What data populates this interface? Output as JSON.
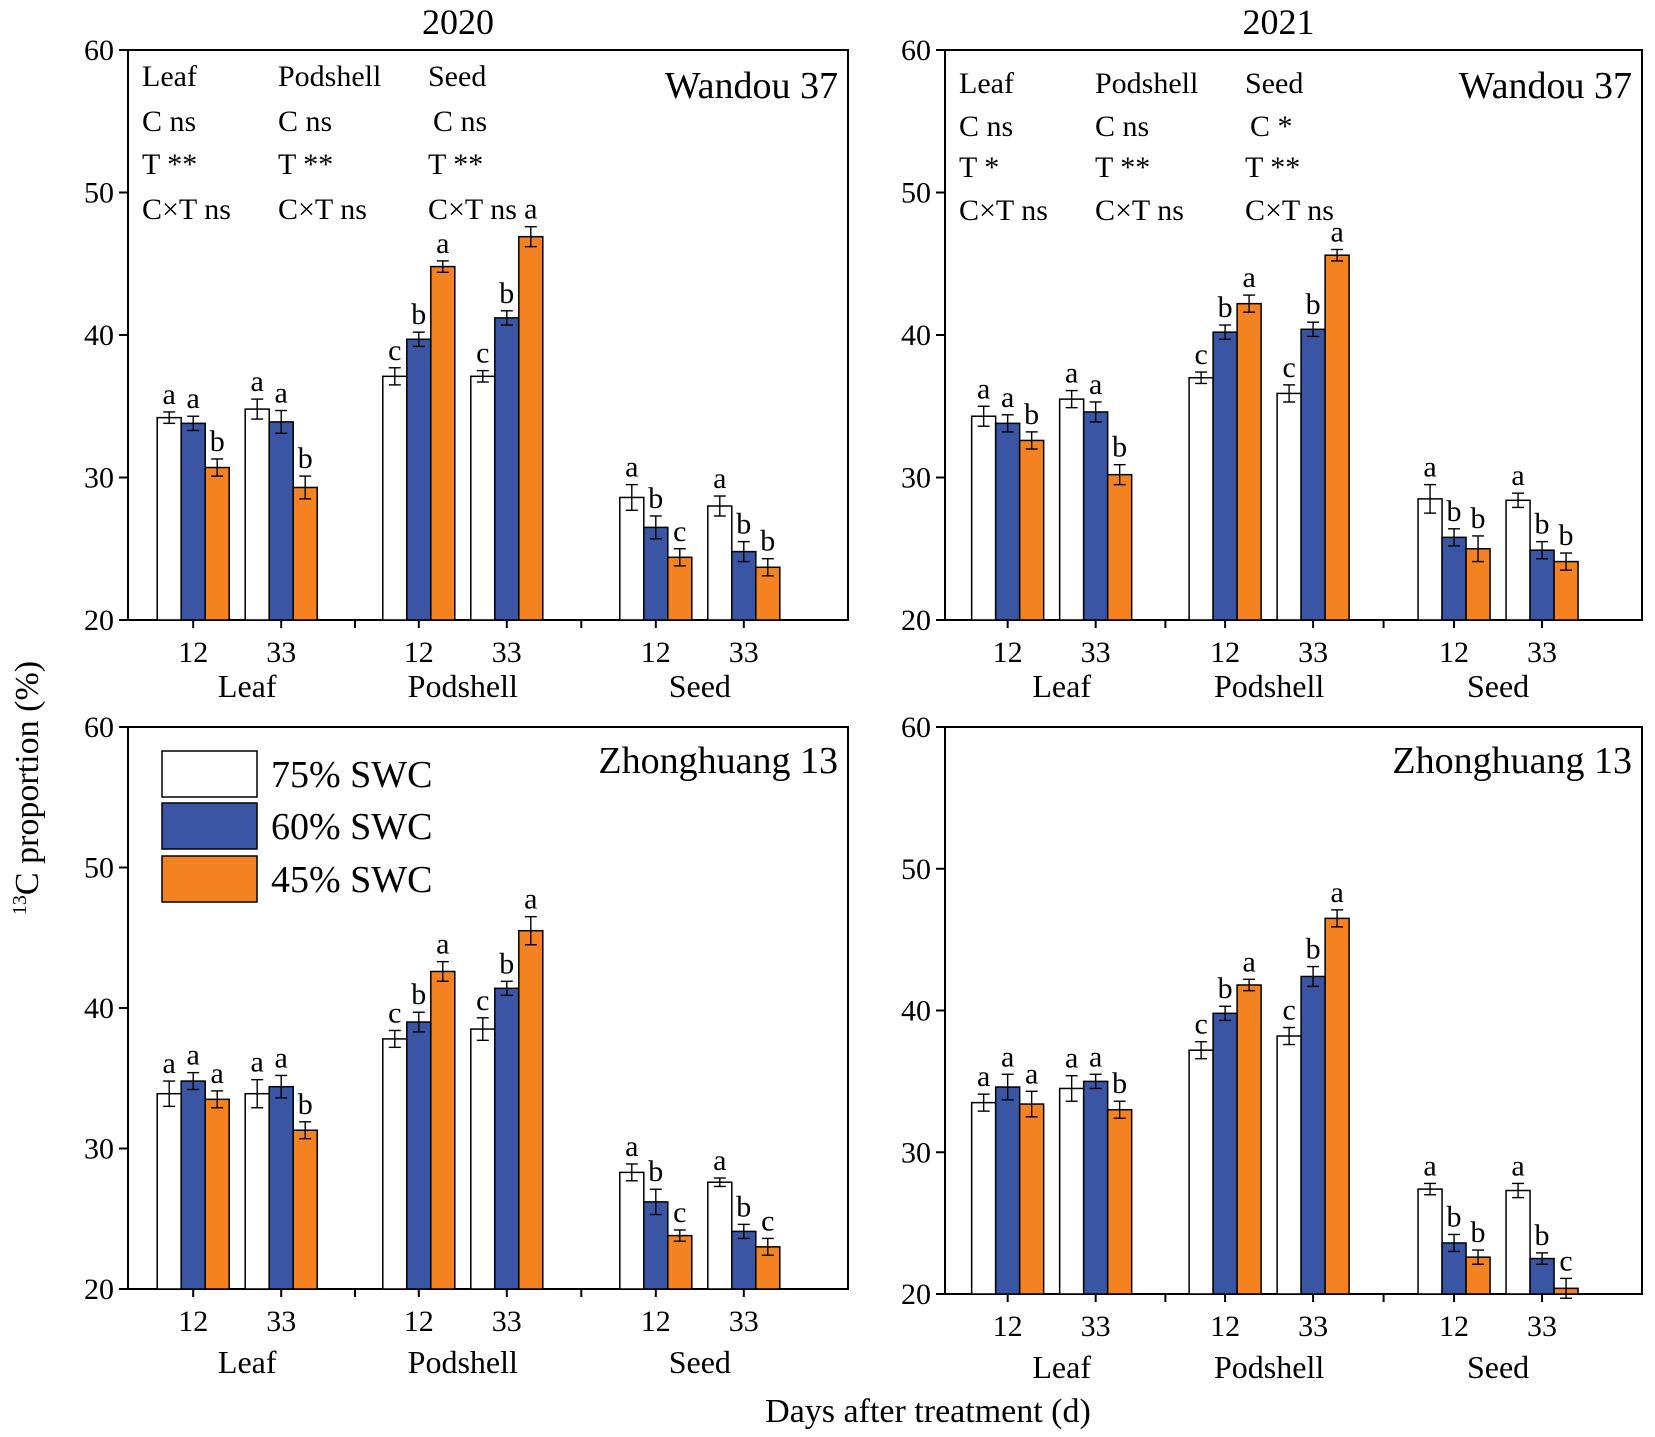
{
  "figure": {
    "ylabel_sup": "13",
    "ylabel_main": "C proportion (%)",
    "xlabel": "Days after treatment (d)"
  },
  "colors": {
    "s75": "#ffffff",
    "s60": "#3a55a4",
    "s45": "#f58220",
    "edge": "#000000"
  },
  "legend": [
    "75% SWC",
    "60% SWC",
    "45% SWC"
  ],
  "chart_data": [
    {
      "type": "bar",
      "year": "2020",
      "cultivar": "Wandou 37",
      "ylim": [
        20,
        60
      ],
      "yticks": [
        20,
        30,
        40,
        50,
        60
      ],
      "groups": [
        "Leaf",
        "Podshell",
        "Seed"
      ],
      "days": [
        "12",
        "33"
      ],
      "series_names": [
        "75% SWC",
        "60% SWC",
        "45% SWC"
      ],
      "values": [
        [
          [
            34.2,
            33.8,
            30.7
          ],
          [
            34.8,
            33.9,
            29.3
          ]
        ],
        [
          [
            37.1,
            39.7,
            44.8
          ],
          [
            37.1,
            41.2,
            46.9
          ]
        ],
        [
          [
            28.6,
            26.5,
            24.4
          ],
          [
            28.0,
            24.8,
            23.7
          ]
        ]
      ],
      "errors": [
        [
          [
            0.4,
            0.5,
            0.6
          ],
          [
            0.7,
            0.8,
            0.8
          ]
        ],
        [
          [
            0.6,
            0.5,
            0.4
          ],
          [
            0.4,
            0.5,
            0.7
          ]
        ],
        [
          [
            0.9,
            0.8,
            0.6
          ],
          [
            0.7,
            0.7,
            0.6
          ]
        ]
      ],
      "letters": [
        [
          [
            "a",
            "a",
            "b"
          ],
          [
            "a",
            "a",
            "b"
          ]
        ],
        [
          [
            "c",
            "b",
            "a"
          ],
          [
            "c",
            "b",
            "a"
          ]
        ],
        [
          [
            "a",
            "b",
            "c"
          ],
          [
            "a",
            "b",
            "b"
          ]
        ]
      ],
      "anova": [
        [
          "Leaf",
          "C ns",
          "T **",
          "C×T ns"
        ],
        [
          "Podshell",
          "C ns",
          "T **",
          "C×T ns"
        ],
        [
          "Seed",
          "C ns",
          "T **",
          "C×T ns"
        ]
      ]
    },
    {
      "type": "bar",
      "year": "2021",
      "cultivar": "Wandou 37",
      "ylim": [
        20,
        60
      ],
      "yticks": [
        20,
        30,
        40,
        50,
        60
      ],
      "groups": [
        "Leaf",
        "Podshell",
        "Seed"
      ],
      "days": [
        "12",
        "33"
      ],
      "series_names": [
        "75% SWC",
        "60% SWC",
        "45% SWC"
      ],
      "values": [
        [
          [
            34.3,
            33.8,
            32.6
          ],
          [
            35.5,
            34.6,
            30.2
          ]
        ],
        [
          [
            37.0,
            40.2,
            42.2
          ],
          [
            35.9,
            40.4,
            45.6
          ]
        ],
        [
          [
            28.5,
            25.8,
            25.0
          ],
          [
            28.4,
            24.9,
            24.1
          ]
        ]
      ],
      "errors": [
        [
          [
            0.7,
            0.6,
            0.6
          ],
          [
            0.6,
            0.7,
            0.7
          ]
        ],
        [
          [
            0.4,
            0.5,
            0.6
          ],
          [
            0.6,
            0.5,
            0.4
          ]
        ],
        [
          [
            1.0,
            0.6,
            0.9
          ],
          [
            0.5,
            0.6,
            0.6
          ]
        ]
      ],
      "letters": [
        [
          [
            "a",
            "a",
            "b"
          ],
          [
            "a",
            "a",
            "b"
          ]
        ],
        [
          [
            "c",
            "b",
            "a"
          ],
          [
            "c",
            "b",
            "a"
          ]
        ],
        [
          [
            "a",
            "b",
            "b"
          ],
          [
            "a",
            "b",
            "b"
          ]
        ]
      ],
      "anova": [
        [
          "Leaf",
          "C ns",
          "T *",
          "C×T ns"
        ],
        [
          "Podshell",
          "C ns",
          "T **",
          "C×T ns"
        ],
        [
          "Seed",
          "C *",
          "T **",
          "C×T ns"
        ]
      ]
    },
    {
      "type": "bar",
      "year": "2020",
      "cultivar": "Zhonghuang 13",
      "ylim": [
        20,
        60
      ],
      "yticks": [
        20,
        30,
        40,
        50,
        60
      ],
      "groups": [
        "Leaf",
        "Podshell",
        "Seed"
      ],
      "days": [
        "12",
        "33"
      ],
      "series_names": [
        "75% SWC",
        "60% SWC",
        "45% SWC"
      ],
      "values": [
        [
          [
            33.9,
            34.8,
            33.5
          ],
          [
            33.9,
            34.4,
            31.3
          ]
        ],
        [
          [
            37.8,
            39.0,
            42.6
          ],
          [
            38.5,
            41.4,
            45.5
          ]
        ],
        [
          [
            28.3,
            26.2,
            23.8
          ],
          [
            27.6,
            24.1,
            23.0
          ]
        ]
      ],
      "errors": [
        [
          [
            0.9,
            0.6,
            0.6
          ],
          [
            1.0,
            0.8,
            0.6
          ]
        ],
        [
          [
            0.6,
            0.7,
            0.7
          ],
          [
            0.8,
            0.5,
            1.0
          ]
        ],
        [
          [
            0.6,
            0.9,
            0.4
          ],
          [
            0.3,
            0.5,
            0.6
          ]
        ]
      ],
      "letters": [
        [
          [
            "a",
            "a",
            "a"
          ],
          [
            "a",
            "a",
            "b"
          ]
        ],
        [
          [
            "c",
            "b",
            "a"
          ],
          [
            "c",
            "b",
            "a"
          ]
        ],
        [
          [
            "a",
            "b",
            "c"
          ],
          [
            "a",
            "b",
            "c"
          ]
        ]
      ]
    },
    {
      "type": "bar",
      "year": "2021",
      "cultivar": "Zhonghuang 13",
      "ylim": [
        20,
        60
      ],
      "yticks": [
        20,
        30,
        40,
        50,
        60
      ],
      "groups": [
        "Leaf",
        "Podshell",
        "Seed"
      ],
      "days": [
        "12",
        "33"
      ],
      "series_names": [
        "75% SWC",
        "60% SWC",
        "45% SWC"
      ],
      "values": [
        [
          [
            33.5,
            34.6,
            33.4
          ],
          [
            34.5,
            35.0,
            33.0
          ]
        ],
        [
          [
            37.2,
            39.8,
            41.8
          ],
          [
            38.2,
            42.4,
            46.5
          ]
        ],
        [
          [
            27.4,
            23.6,
            22.6
          ],
          [
            27.3,
            22.5,
            20.4
          ]
        ]
      ],
      "errors": [
        [
          [
            0.6,
            0.9,
            0.9
          ],
          [
            0.9,
            0.5,
            0.6
          ]
        ],
        [
          [
            0.6,
            0.5,
            0.4
          ],
          [
            0.6,
            0.7,
            0.6
          ]
        ],
        [
          [
            0.4,
            0.6,
            0.5
          ],
          [
            0.5,
            0.4,
            0.7
          ]
        ]
      ],
      "letters": [
        [
          [
            "a",
            "a",
            "a"
          ],
          [
            "a",
            "a",
            "b"
          ]
        ],
        [
          [
            "c",
            "b",
            "a"
          ],
          [
            "c",
            "b",
            "a"
          ]
        ],
        [
          [
            "a",
            "b",
            "b"
          ],
          [
            "a",
            "b",
            "c"
          ]
        ]
      ]
    }
  ]
}
